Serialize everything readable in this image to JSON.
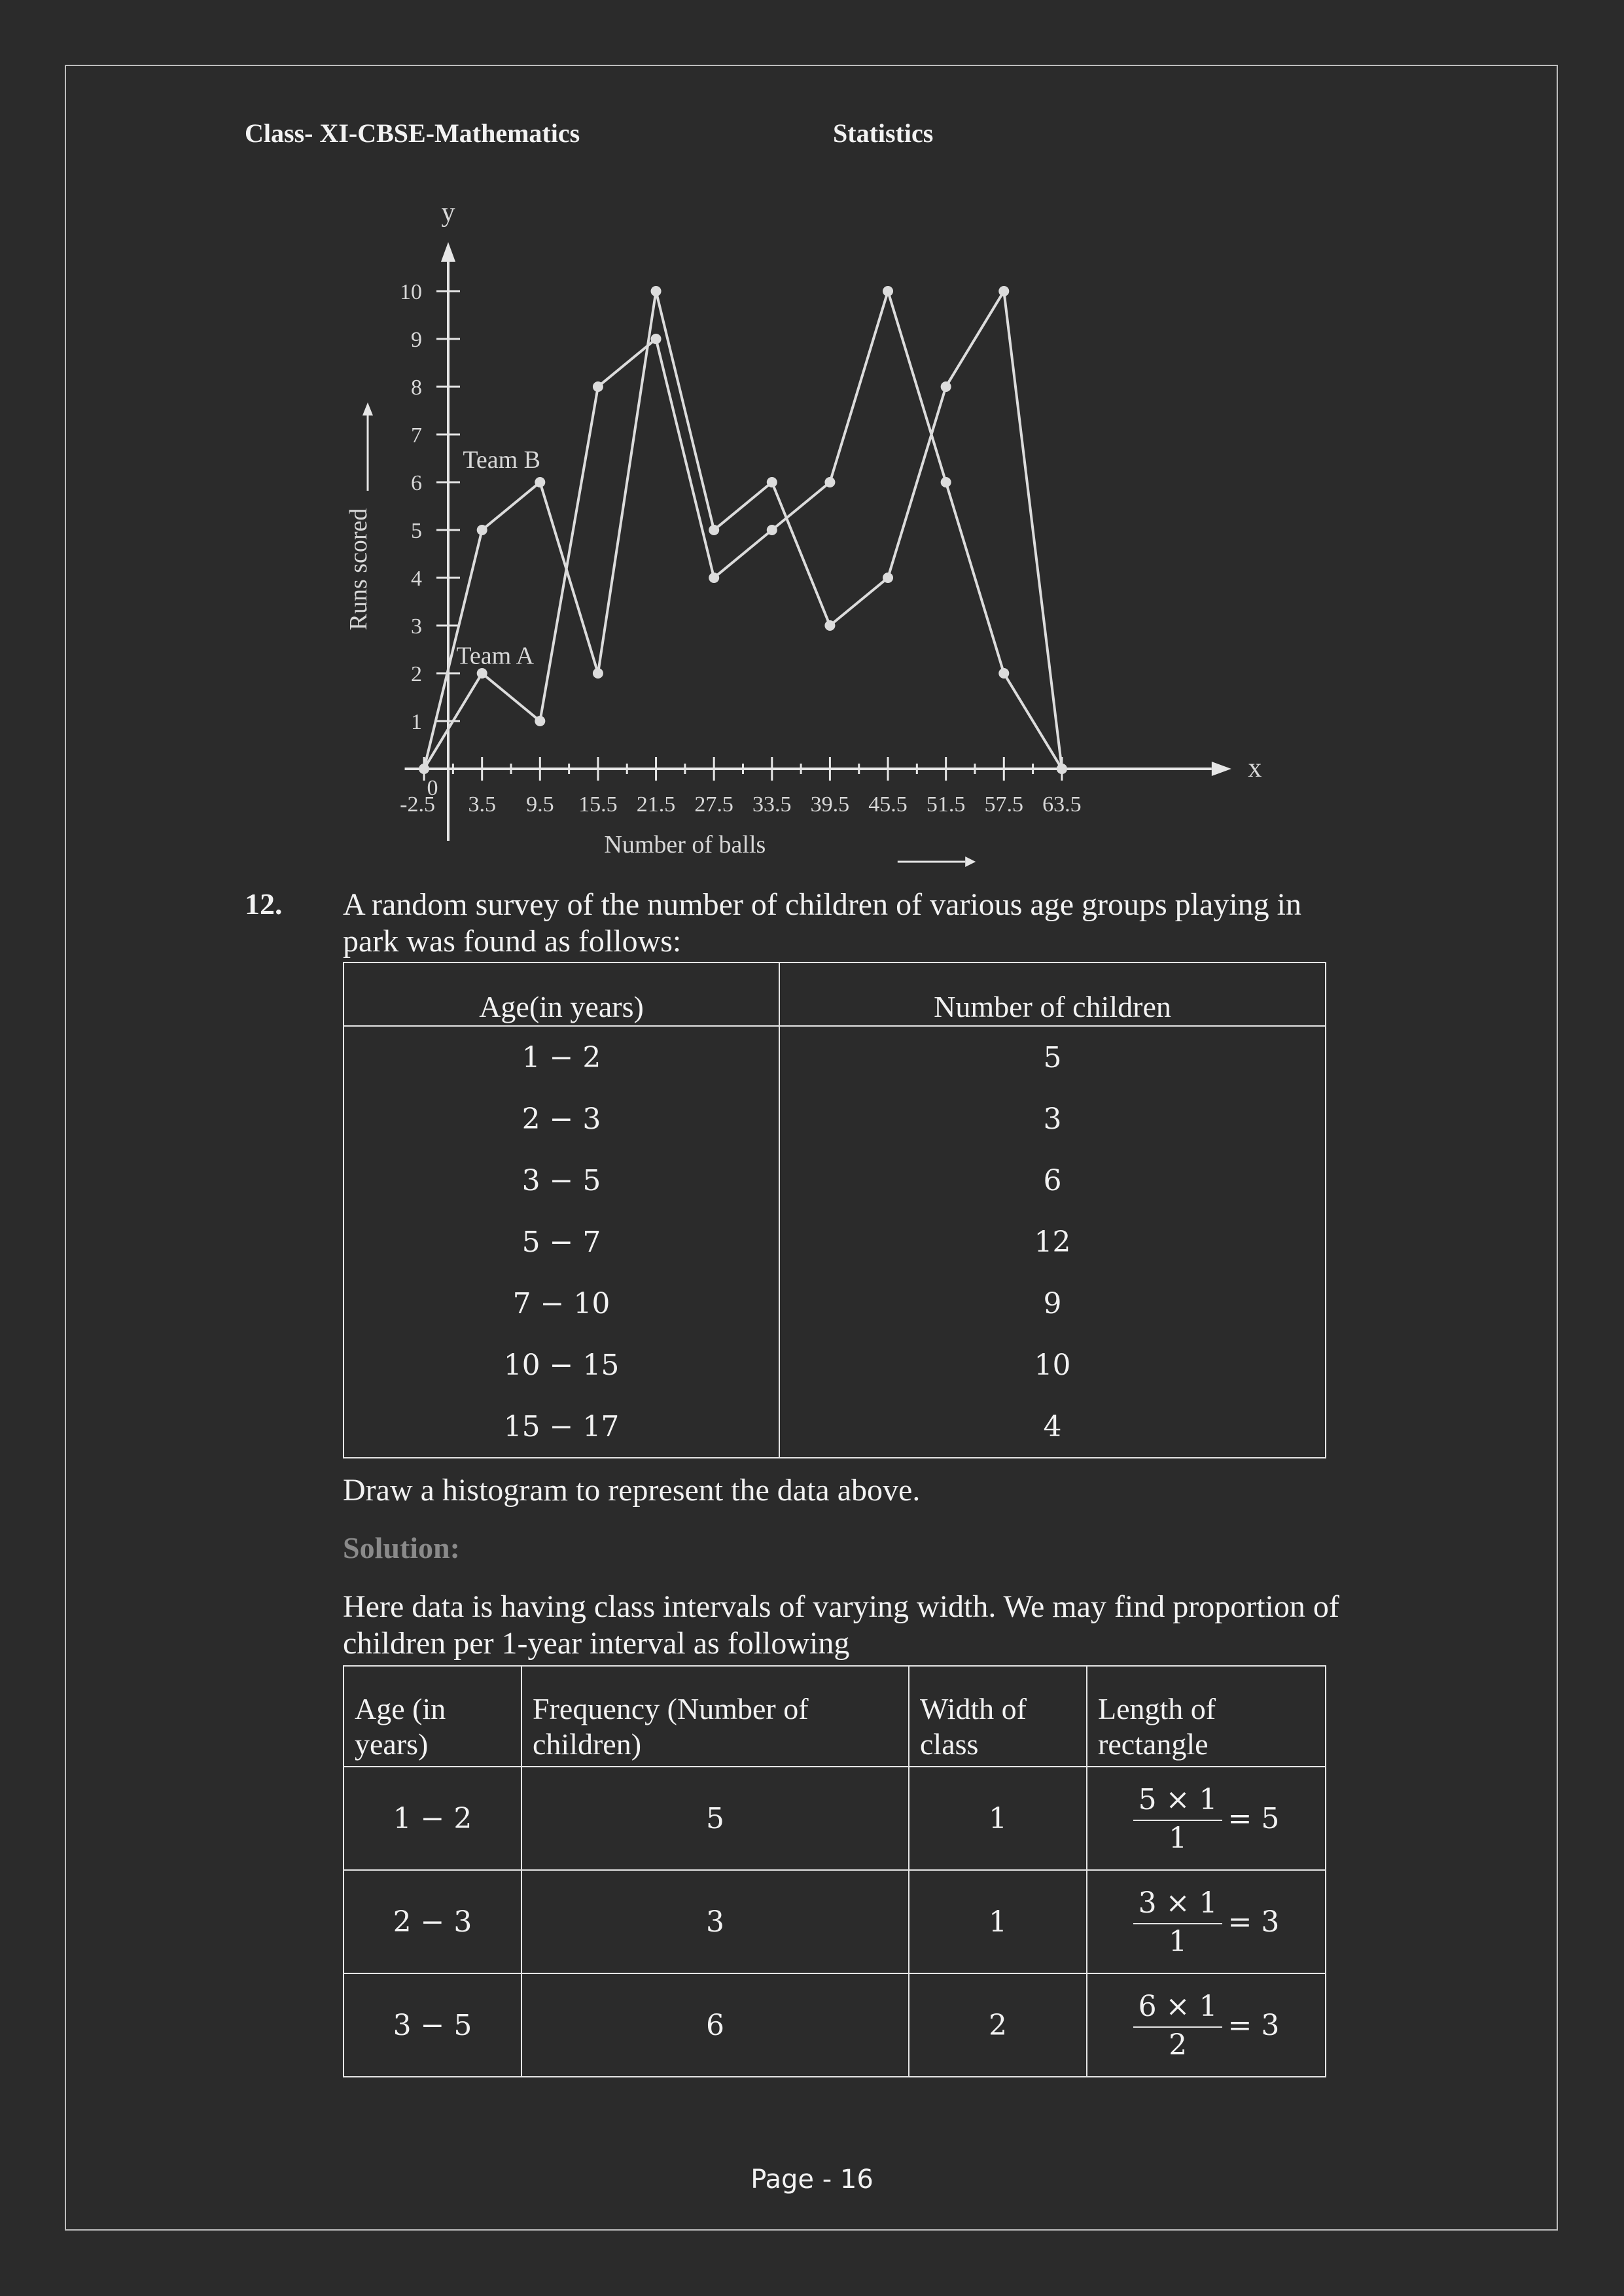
{
  "header": {
    "left": "Class- XI-CBSE-Mathematics",
    "right": "Statistics"
  },
  "chart_data": {
    "type": "line",
    "title": "",
    "xlabel": "Number of balls",
    "ylabel": "Runs scored",
    "x_axis_symbol": "x",
    "y_axis_symbol": "y",
    "origin_label": "0",
    "x": [
      -2.5,
      3.5,
      9.5,
      15.5,
      21.5,
      27.5,
      33.5,
      39.5,
      45.5,
      51.5,
      57.5,
      63.5
    ],
    "x_tick_labels": [
      "-2.5",
      "3.5",
      "9.5",
      "15.5",
      "21.5",
      "27.5",
      "33.5",
      "39.5",
      "45.5",
      "51.5",
      "57.5",
      "63.5"
    ],
    "y_ticks": [
      1,
      2,
      3,
      4,
      5,
      6,
      7,
      8,
      9,
      10
    ],
    "ylim": [
      0,
      10
    ],
    "series": [
      {
        "name": "Team A",
        "values": [
          0,
          2,
          1,
          8,
          9,
          4,
          5,
          6,
          10,
          6,
          2,
          0
        ]
      },
      {
        "name": "Team B",
        "values": [
          0,
          5,
          6,
          2,
          10,
          5,
          6,
          3,
          4,
          8,
          10,
          0
        ]
      }
    ],
    "grid": false,
    "colors": {
      "line": "#dcdcdc",
      "axis": "#e6e6e6"
    }
  },
  "question": {
    "number": "12.",
    "text": "A random survey of the number of children of various age groups playing in park was found as follows:",
    "table": {
      "headers": [
        "Age(in years)",
        "Number of children"
      ],
      "rows": [
        [
          "1 − 2",
          "5"
        ],
        [
          "2 − 3",
          "3"
        ],
        [
          "3 − 5",
          "6"
        ],
        [
          "5 − 7",
          "12"
        ],
        [
          "7 − 10",
          "9"
        ],
        [
          "10 − 15",
          "10"
        ],
        [
          "15 − 17",
          "4"
        ]
      ]
    },
    "instruction": "Draw a histogram to represent the data above."
  },
  "solution": {
    "label": "Solution:",
    "text": "Here data is having class intervals of varying width. We may find proportion of children per 1-year interval as following",
    "table": {
      "headers": [
        "Age (in years)",
        "Frequency (Number of children)",
        "Width of class",
        "Length of rectangle"
      ],
      "rows": [
        {
          "age": "1 − 2",
          "freq": "5",
          "width": "1",
          "num": "5 × 1",
          "den": "1",
          "result": "= 5"
        },
        {
          "age": "2 − 3",
          "freq": "3",
          "width": "1",
          "num": "3 × 1",
          "den": "1",
          "result": "= 3"
        },
        {
          "age": "3 − 5",
          "freq": "6",
          "width": "2",
          "num": "6 × 1",
          "den": "2",
          "result": "= 3"
        }
      ]
    }
  },
  "footer": {
    "page": "Page - 16"
  }
}
